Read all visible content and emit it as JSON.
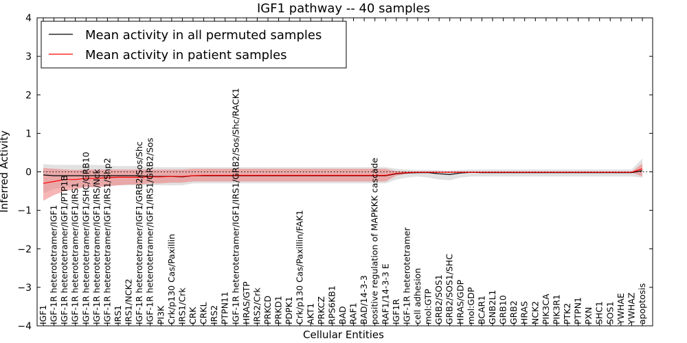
{
  "chart_data": {
    "type": "line",
    "title": "IGF1 pathway -- 40 samples",
    "xlabel": "Cellular Entities",
    "ylabel": "Inferred Activity",
    "ylim": [
      -4,
      4
    ],
    "yticks": [
      -4,
      -3,
      -2,
      -1,
      0,
      1,
      2,
      3,
      4
    ],
    "ytick_labels": [
      "−4",
      "−3",
      "−2",
      "−1",
      "0",
      "1",
      "2",
      "3",
      "4"
    ],
    "reference_line": 0,
    "legend_position": "top-left",
    "categories": [
      "IGF1",
      "IGF-1R heterotetramer/IGF1",
      "IGF-1R heterotetramer/IGF1/PTP1B",
      "IGF-1R heterotetramer/IGF1/IRS1",
      "IGF-1R heterotetramer/IGF1/SHC/GRB10",
      "IGF-1R heterotetramer/IGF1/IRS/Nck",
      "IGF-1R heterotetramer/IGF1/IRS1/Shp2",
      "IRS1",
      "IRS1/NCK2",
      "IGF-1R heterotetramer/IGF1/GRB2/Sos/Shc",
      "IGF-1R heterotetramer/IGF1/IRS1/GRB2/Sos",
      "PI3K",
      "Crk/p130 Cas/Paxillin",
      "IRS1/Crk",
      "CRK",
      "CRKL",
      "IRS2",
      "PTPN11",
      "IGF-1R heterotetramer/IGF1/IRS1/GRB2/Sos/Shc/RACK1",
      "HRAS/GTP",
      "IRS2/Crk",
      "PRKCD",
      "PRKD1",
      "PDPK1",
      "Crk/p130 Cas/Paxillin/FAK1",
      "AKT1",
      "PRKCZ",
      "RPS6KB1",
      "BAD",
      "RAF1",
      "BAD/14-3-3",
      "positive regulation of MAPKKK cascade",
      "RAF1/14-3-3 E",
      "IGF1R",
      "IGF-1R heterotetramer",
      "cell adhesion",
      "mol:GTP",
      "GRB2/SOS1",
      "GRB2/SOS1/SHC",
      "HRAS/GDP",
      "mol:GDP",
      "BCAR1",
      "GNB2L1",
      "GRB10",
      "GRB2",
      "HRAS",
      "NCK2",
      "PIK3CA",
      "PIK3R1",
      "PTK2",
      "PTPN1",
      "PXN",
      "SHC1",
      "SOS1",
      "YWHAE",
      "YWHAZ",
      "apoptosis"
    ],
    "series": [
      {
        "name": "Mean activity in all permuted samples",
        "color": "#000000",
        "band_color": "#c8c8c8",
        "values": [
          -0.08,
          -0.1,
          -0.1,
          -0.1,
          -0.1,
          -0.1,
          -0.1,
          -0.1,
          -0.1,
          -0.1,
          -0.12,
          -0.12,
          -0.12,
          -0.13,
          -0.1,
          -0.1,
          -0.1,
          -0.1,
          -0.1,
          -0.1,
          -0.1,
          -0.1,
          -0.1,
          -0.1,
          -0.1,
          -0.1,
          -0.1,
          -0.1,
          -0.1,
          -0.1,
          -0.1,
          -0.1,
          -0.1,
          -0.05,
          -0.03,
          -0.02,
          -0.02,
          -0.05,
          -0.07,
          -0.03,
          -0.01,
          -0.02,
          -0.02,
          -0.02,
          -0.02,
          -0.02,
          -0.02,
          -0.02,
          -0.02,
          -0.02,
          -0.02,
          -0.02,
          -0.02,
          -0.02,
          -0.02,
          -0.02,
          0.03
        ],
        "lower": [
          -0.55,
          -0.45,
          -0.4,
          -0.4,
          -0.4,
          -0.4,
          -0.35,
          -0.35,
          -0.35,
          -0.35,
          -0.35,
          -0.35,
          -0.35,
          -0.35,
          -0.3,
          -0.3,
          -0.3,
          -0.3,
          -0.3,
          -0.3,
          -0.3,
          -0.3,
          -0.3,
          -0.3,
          -0.3,
          -0.3,
          -0.3,
          -0.3,
          -0.3,
          -0.3,
          -0.3,
          -0.3,
          -0.3,
          -0.2,
          -0.15,
          -0.12,
          -0.15,
          -0.2,
          -0.22,
          -0.15,
          -0.12,
          -0.12,
          -0.12,
          -0.12,
          -0.12,
          -0.12,
          -0.12,
          -0.12,
          -0.12,
          -0.12,
          -0.12,
          -0.12,
          -0.12,
          -0.12,
          -0.12,
          -0.12,
          -0.15
        ],
        "upper": [
          0.2,
          0.18,
          0.18,
          0.18,
          0.18,
          0.18,
          0.16,
          0.15,
          0.15,
          0.15,
          0.12,
          0.12,
          0.12,
          0.12,
          0.12,
          0.12,
          0.12,
          0.12,
          0.12,
          0.12,
          0.12,
          0.12,
          0.12,
          0.12,
          0.12,
          0.12,
          0.12,
          0.12,
          0.12,
          0.12,
          0.12,
          0.12,
          0.12,
          0.08,
          0.06,
          0.05,
          0.05,
          0.04,
          0.03,
          0.05,
          0.06,
          0.06,
          0.06,
          0.06,
          0.06,
          0.06,
          0.06,
          0.06,
          0.06,
          0.06,
          0.06,
          0.06,
          0.06,
          0.06,
          0.06,
          0.06,
          0.35
        ]
      },
      {
        "name": "Mean activity in patient samples",
        "color": "#ff0000",
        "band_color": "#f07a7a",
        "values": [
          -0.3,
          -0.25,
          -0.2,
          -0.2,
          -0.17,
          -0.17,
          -0.15,
          -0.14,
          -0.14,
          -0.14,
          -0.13,
          -0.13,
          -0.12,
          -0.12,
          -0.1,
          -0.09,
          -0.09,
          -0.09,
          -0.09,
          -0.09,
          -0.09,
          -0.09,
          -0.09,
          -0.09,
          -0.09,
          -0.09,
          -0.09,
          -0.09,
          -0.09,
          -0.09,
          -0.09,
          -0.09,
          -0.09,
          -0.04,
          -0.02,
          -0.01,
          -0.01,
          -0.01,
          -0.01,
          -0.01,
          -0.01,
          -0.01,
          -0.01,
          -0.01,
          -0.01,
          -0.01,
          -0.01,
          -0.01,
          -0.01,
          -0.01,
          -0.01,
          -0.01,
          -0.01,
          -0.01,
          -0.01,
          -0.01,
          0.08
        ],
        "lower": [
          -0.75,
          -0.6,
          -0.5,
          -0.45,
          -0.4,
          -0.4,
          -0.38,
          -0.35,
          -0.33,
          -0.33,
          -0.3,
          -0.3,
          -0.28,
          -0.28,
          -0.25,
          -0.25,
          -0.25,
          -0.25,
          -0.25,
          -0.25,
          -0.25,
          -0.25,
          -0.25,
          -0.25,
          -0.25,
          -0.25,
          -0.25,
          -0.25,
          -0.25,
          -0.25,
          -0.25,
          -0.25,
          -0.25,
          -0.1,
          -0.05,
          -0.03,
          -0.02,
          -0.02,
          -0.02,
          -0.02,
          -0.02,
          -0.02,
          -0.02,
          -0.02,
          -0.02,
          -0.02,
          -0.02,
          -0.02,
          -0.02,
          -0.02,
          -0.02,
          -0.02,
          -0.02,
          -0.02,
          -0.02,
          -0.02,
          -0.12
        ],
        "upper": [
          0.1,
          0.08,
          0.06,
          0.05,
          0.06,
          0.06,
          0.06,
          0.06,
          0.06,
          0.06,
          0.06,
          0.06,
          0.06,
          0.06,
          0.08,
          0.08,
          0.08,
          0.08,
          0.08,
          0.08,
          0.08,
          0.08,
          0.08,
          0.08,
          0.08,
          0.08,
          0.08,
          0.08,
          0.08,
          0.08,
          0.08,
          0.08,
          0.08,
          0.02,
          0.01,
          0.0,
          0.0,
          0.0,
          0.0,
          0.0,
          0.0,
          0.0,
          0.0,
          0.0,
          0.0,
          0.0,
          0.0,
          0.0,
          0.0,
          0.0,
          0.0,
          0.0,
          0.0,
          0.0,
          0.0,
          0.0,
          0.22
        ]
      }
    ]
  }
}
